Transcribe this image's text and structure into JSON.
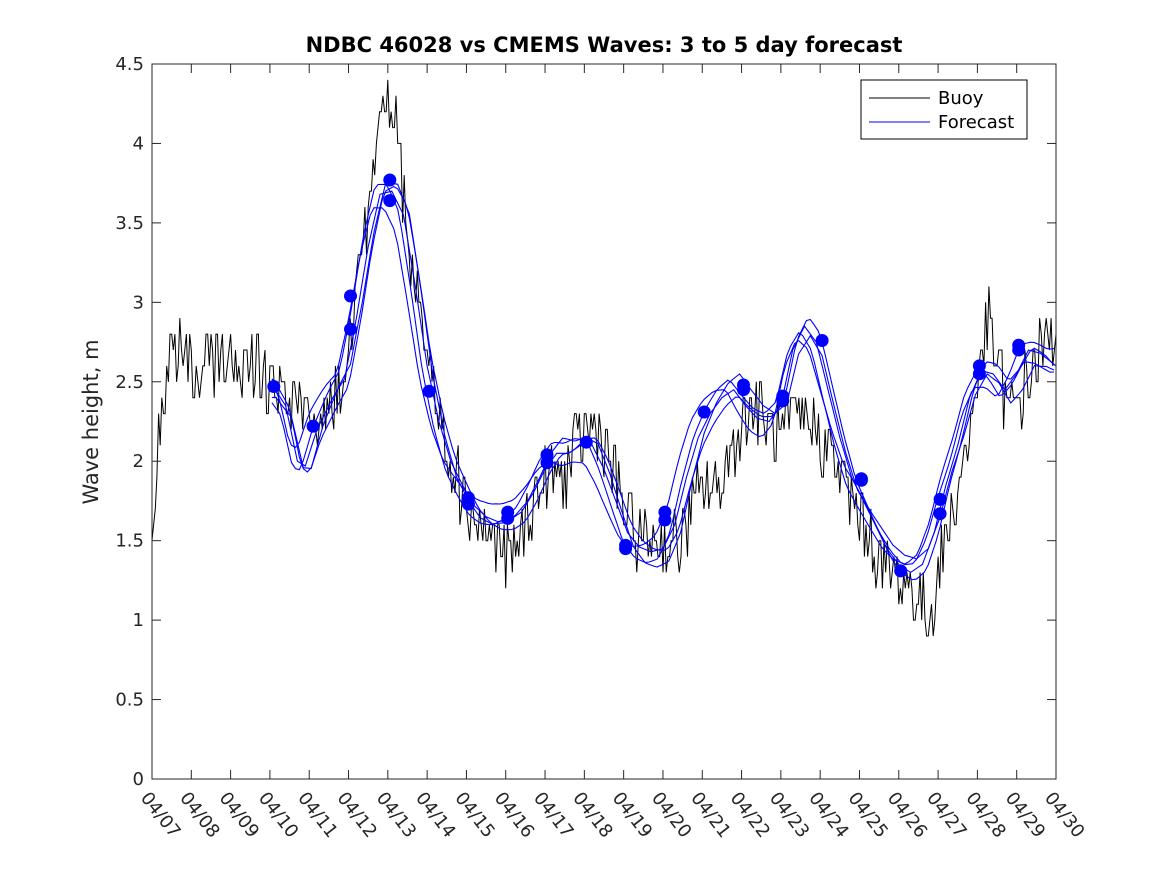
{
  "chart_data": {
    "type": "line",
    "title": "NDBC 46028 vs CMEMS Waves: 3 to 5 day forecast",
    "xlabel": "",
    "ylabel": "Wave height, m",
    "x_ticks": [
      "04/07",
      "04/08",
      "04/09",
      "04/10",
      "04/11",
      "04/12",
      "04/13",
      "04/14",
      "04/15",
      "04/16",
      "04/17",
      "04/18",
      "04/19",
      "04/20",
      "04/21",
      "04/22",
      "04/23",
      "04/24",
      "04/25",
      "04/26",
      "04/27",
      "04/28",
      "04/29",
      "04/30"
    ],
    "y_ticks": [
      "0",
      "0.5",
      "1",
      "1.5",
      "2",
      "2.5",
      "3",
      "3.5",
      "4",
      "4.5"
    ],
    "xlim_days": [
      0,
      23
    ],
    "ylim": [
      0,
      4.5
    ],
    "grid": false,
    "legend_position": "top-right",
    "series": [
      {
        "name": "Buoy",
        "color": "#000000",
        "anchors_day_value": [
          [
            0.0,
            1.6
          ],
          [
            0.2,
            2.2
          ],
          [
            0.4,
            2.6
          ],
          [
            0.6,
            2.75
          ],
          [
            0.9,
            2.6
          ],
          [
            1.2,
            2.55
          ],
          [
            1.6,
            2.65
          ],
          [
            2.0,
            2.62
          ],
          [
            2.4,
            2.6
          ],
          [
            2.8,
            2.6
          ],
          [
            3.1,
            2.45
          ],
          [
            3.4,
            2.35
          ],
          [
            3.7,
            2.3
          ],
          [
            4.0,
            2.2
          ],
          [
            4.3,
            2.3
          ],
          [
            4.6,
            2.4
          ],
          [
            4.9,
            2.5
          ],
          [
            5.1,
            2.8
          ],
          [
            5.4,
            3.4
          ],
          [
            5.7,
            3.9
          ],
          [
            5.95,
            4.35
          ],
          [
            6.15,
            4.2
          ],
          [
            6.4,
            3.7
          ],
          [
            6.7,
            3.1
          ],
          [
            7.0,
            2.7
          ],
          [
            7.3,
            2.3
          ],
          [
            7.6,
            2.0
          ],
          [
            7.9,
            1.8
          ],
          [
            8.2,
            1.65
          ],
          [
            8.5,
            1.55
          ],
          [
            8.8,
            1.45
          ],
          [
            9.0,
            1.4
          ],
          [
            9.3,
            1.45
          ],
          [
            9.6,
            1.7
          ],
          [
            9.9,
            1.85
          ],
          [
            10.2,
            1.9
          ],
          [
            10.5,
            1.9
          ],
          [
            10.8,
            2.1
          ],
          [
            11.1,
            2.2
          ],
          [
            11.4,
            2.2
          ],
          [
            11.7,
            1.95
          ],
          [
            12.0,
            1.7
          ],
          [
            12.3,
            1.55
          ],
          [
            12.6,
            1.5
          ],
          [
            12.9,
            1.5
          ],
          [
            13.2,
            1.48
          ],
          [
            13.5,
            1.5
          ],
          [
            13.8,
            1.75
          ],
          [
            14.1,
            1.85
          ],
          [
            14.4,
            1.8
          ],
          [
            14.7,
            2.05
          ],
          [
            15.0,
            2.25
          ],
          [
            15.3,
            2.35
          ],
          [
            15.6,
            2.25
          ],
          [
            15.9,
            2.15
          ],
          [
            16.2,
            2.2
          ],
          [
            16.5,
            2.3
          ],
          [
            16.8,
            2.25
          ],
          [
            17.1,
            2.1
          ],
          [
            17.4,
            2.0
          ],
          [
            17.7,
            1.8
          ],
          [
            18.0,
            1.65
          ],
          [
            18.3,
            1.5
          ],
          [
            18.6,
            1.35
          ],
          [
            18.9,
            1.28
          ],
          [
            19.2,
            1.22
          ],
          [
            19.5,
            1.12
          ],
          [
            19.75,
            1.0
          ],
          [
            20.0,
            1.3
          ],
          [
            20.3,
            1.6
          ],
          [
            20.6,
            1.95
          ],
          [
            20.9,
            2.3
          ],
          [
            21.1,
            2.7
          ],
          [
            21.3,
            2.85
          ],
          [
            21.5,
            2.6
          ],
          [
            21.8,
            2.3
          ],
          [
            22.1,
            2.4
          ],
          [
            22.4,
            2.6
          ],
          [
            22.7,
            2.75
          ],
          [
            23.0,
            2.8
          ]
        ]
      },
      {
        "name": "Forecast",
        "color": "#0000ff",
        "anchors_day_value": [
          [
            3.0,
            2.5
          ],
          [
            3.4,
            2.35
          ],
          [
            3.7,
            2.0
          ],
          [
            3.9,
            1.97
          ],
          [
            4.2,
            2.2
          ],
          [
            4.6,
            2.4
          ],
          [
            4.9,
            2.52
          ],
          [
            5.2,
            2.9
          ],
          [
            5.5,
            3.35
          ],
          [
            5.8,
            3.68
          ],
          [
            6.1,
            3.7
          ],
          [
            6.4,
            3.55
          ],
          [
            6.7,
            3.1
          ],
          [
            7.0,
            2.6
          ],
          [
            7.3,
            2.25
          ],
          [
            7.6,
            2.0
          ],
          [
            7.9,
            1.85
          ],
          [
            8.2,
            1.72
          ],
          [
            8.5,
            1.65
          ],
          [
            8.8,
            1.62
          ],
          [
            9.1,
            1.63
          ],
          [
            9.4,
            1.68
          ],
          [
            9.7,
            1.8
          ],
          [
            10.0,
            1.95
          ],
          [
            10.3,
            2.05
          ],
          [
            10.6,
            2.05
          ],
          [
            10.9,
            2.1
          ],
          [
            11.2,
            2.1
          ],
          [
            11.5,
            1.95
          ],
          [
            11.8,
            1.75
          ],
          [
            12.1,
            1.55
          ],
          [
            12.4,
            1.46
          ],
          [
            12.7,
            1.43
          ],
          [
            13.0,
            1.45
          ],
          [
            13.3,
            1.6
          ],
          [
            13.6,
            1.9
          ],
          [
            13.9,
            2.15
          ],
          [
            14.2,
            2.3
          ],
          [
            14.5,
            2.4
          ],
          [
            14.8,
            2.45
          ],
          [
            15.1,
            2.35
          ],
          [
            15.4,
            2.27
          ],
          [
            15.7,
            2.25
          ],
          [
            16.0,
            2.35
          ],
          [
            16.3,
            2.7
          ],
          [
            16.6,
            2.85
          ],
          [
            16.9,
            2.75
          ],
          [
            17.2,
            2.45
          ],
          [
            17.5,
            2.15
          ],
          [
            17.8,
            1.9
          ],
          [
            18.1,
            1.75
          ],
          [
            18.4,
            1.6
          ],
          [
            18.7,
            1.45
          ],
          [
            19.0,
            1.35
          ],
          [
            19.3,
            1.3
          ],
          [
            19.6,
            1.35
          ],
          [
            19.9,
            1.55
          ],
          [
            20.2,
            1.85
          ],
          [
            20.5,
            2.1
          ],
          [
            20.8,
            2.4
          ],
          [
            21.1,
            2.57
          ],
          [
            21.4,
            2.55
          ],
          [
            21.7,
            2.45
          ],
          [
            22.0,
            2.55
          ],
          [
            22.3,
            2.7
          ],
          [
            22.6,
            2.68
          ],
          [
            23.0,
            2.6
          ]
        ]
      }
    ],
    "forecast_markers_day_value": [
      [
        3.1,
        2.47
      ],
      [
        4.1,
        2.22
      ],
      [
        5.05,
        2.83
      ],
      [
        5.05,
        3.04
      ],
      [
        6.05,
        3.77
      ],
      [
        6.05,
        3.64
      ],
      [
        7.05,
        2.44
      ],
      [
        8.05,
        1.77
      ],
      [
        8.05,
        1.73
      ],
      [
        9.05,
        1.64
      ],
      [
        9.05,
        1.68
      ],
      [
        10.05,
        1.99
      ],
      [
        10.05,
        2.04
      ],
      [
        11.05,
        2.12
      ],
      [
        12.05,
        1.45
      ],
      [
        12.05,
        1.47
      ],
      [
        13.05,
        1.63
      ],
      [
        13.05,
        1.68
      ],
      [
        14.05,
        2.31
      ],
      [
        15.05,
        2.45
      ],
      [
        15.05,
        2.48
      ],
      [
        16.05,
        2.38
      ],
      [
        16.05,
        2.41
      ],
      [
        17.05,
        2.76
      ],
      [
        18.05,
        1.88
      ],
      [
        18.05,
        1.89
      ],
      [
        19.05,
        1.31
      ],
      [
        20.05,
        1.67
      ],
      [
        20.05,
        1.76
      ],
      [
        21.05,
        2.55
      ],
      [
        21.05,
        2.6
      ],
      [
        22.05,
        2.7
      ],
      [
        22.05,
        2.73
      ]
    ]
  }
}
